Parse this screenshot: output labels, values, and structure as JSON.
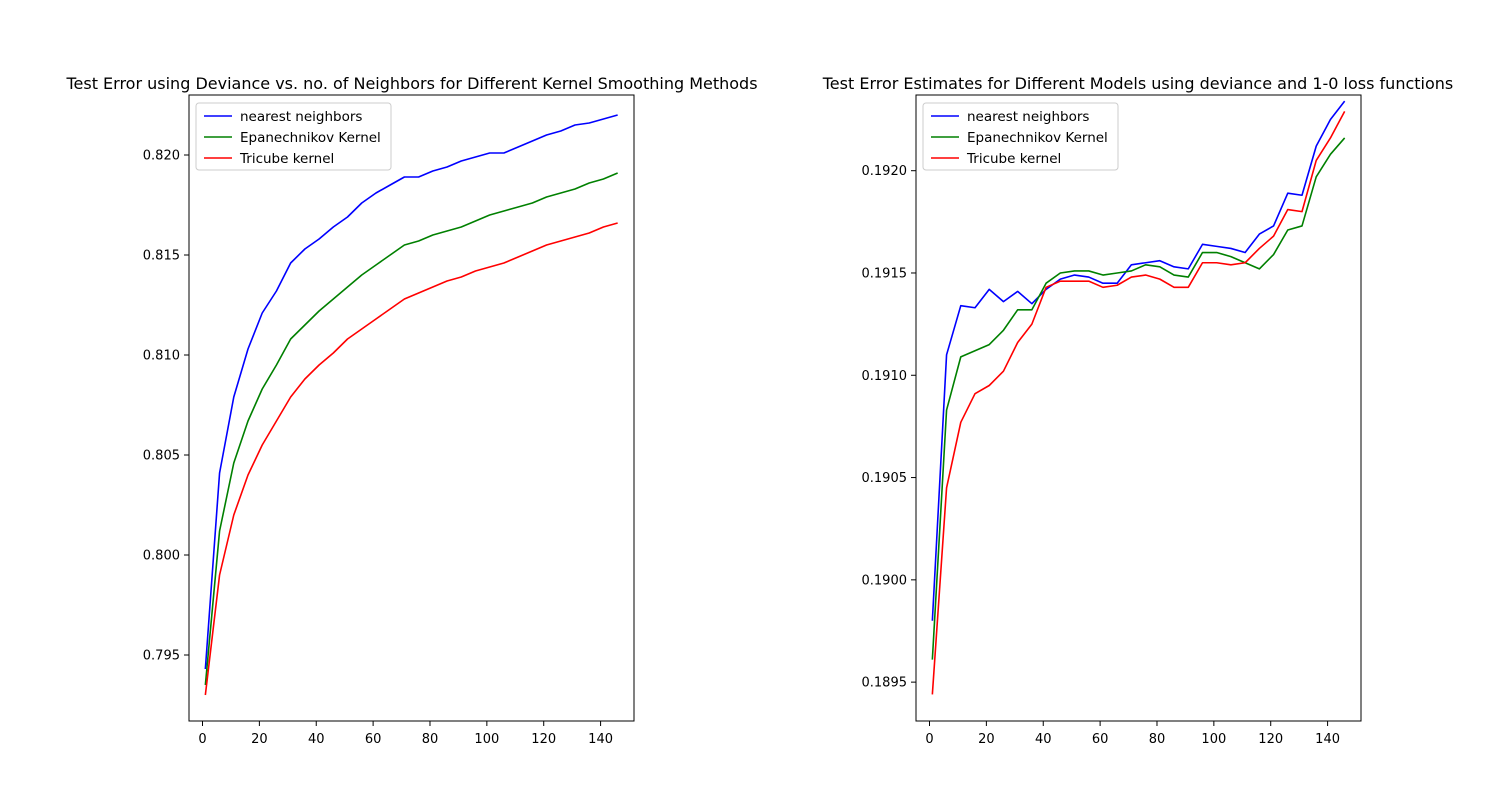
{
  "chart_data": [
    {
      "type": "line",
      "title": "Test Error using Deviance vs. no. of Neighbors for Different Kernel Smoothing Methods",
      "xlabel": "",
      "ylabel": "",
      "xlim": [
        -4.75,
        151.75
      ],
      "ylim": [
        0.7917,
        0.823
      ],
      "xticks": [
        0,
        20,
        40,
        60,
        80,
        100,
        120,
        140
      ],
      "xtick_labels": [
        "0",
        "20",
        "40",
        "60",
        "80",
        "100",
        "120",
        "140"
      ],
      "yticks": [
        0.795,
        0.8,
        0.805,
        0.81,
        0.815,
        0.82
      ],
      "ytick_labels": [
        "0.795",
        "0.800",
        "0.805",
        "0.810",
        "0.815",
        "0.820"
      ],
      "grid": false,
      "legend": "top-left",
      "x": [
        1,
        6,
        11,
        16,
        21,
        26,
        31,
        36,
        41,
        46,
        51,
        56,
        61,
        66,
        71,
        76,
        81,
        86,
        91,
        96,
        101,
        106,
        111,
        116,
        121,
        126,
        131,
        136,
        141,
        146
      ],
      "series": [
        {
          "name": "nearest neighbors",
          "color": "#0000ff",
          "values": [
            0.7943,
            0.8041,
            0.8079,
            0.8103,
            0.8121,
            0.8132,
            0.8146,
            0.8153,
            0.8158,
            0.8164,
            0.8169,
            0.8176,
            0.8181,
            0.8185,
            0.8189,
            0.8189,
            0.8192,
            0.8194,
            0.8197,
            0.8199,
            0.8201,
            0.8201,
            0.8204,
            0.8207,
            0.821,
            0.8212,
            0.8215,
            0.8216,
            0.8218,
            0.822
          ]
        },
        {
          "name": "Epanechnikov Kernel",
          "color": "#008000",
          "values": [
            0.7935,
            0.8012,
            0.8046,
            0.8067,
            0.8083,
            0.8095,
            0.8108,
            0.8115,
            0.8122,
            0.8128,
            0.8134,
            0.814,
            0.8145,
            0.815,
            0.8155,
            0.8157,
            0.816,
            0.8162,
            0.8164,
            0.8167,
            0.817,
            0.8172,
            0.8174,
            0.8176,
            0.8179,
            0.8181,
            0.8183,
            0.8186,
            0.8188,
            0.8191
          ]
        },
        {
          "name": "Tricube kernel",
          "color": "#ff0000",
          "values": [
            0.793,
            0.799,
            0.802,
            0.804,
            0.8055,
            0.8067,
            0.8079,
            0.8088,
            0.8095,
            0.8101,
            0.8108,
            0.8113,
            0.8118,
            0.8123,
            0.8128,
            0.8131,
            0.8134,
            0.8137,
            0.8139,
            0.8142,
            0.8144,
            0.8146,
            0.8149,
            0.8152,
            0.8155,
            0.8157,
            0.8159,
            0.8161,
            0.8164,
            0.8166
          ]
        }
      ]
    },
    {
      "type": "line",
      "title": "Test Error Estimates for Different Models using deviance and 1-0 loss functions",
      "xlabel": "",
      "ylabel": "",
      "xlim": [
        -4.75,
        151.75
      ],
      "ylim": [
        0.18931,
        0.19237
      ],
      "xticks": [
        0,
        20,
        40,
        60,
        80,
        100,
        120,
        140
      ],
      "xtick_labels": [
        "0",
        "20",
        "40",
        "60",
        "80",
        "100",
        "120",
        "140"
      ],
      "yticks": [
        0.1895,
        0.19,
        0.1905,
        0.191,
        0.1915,
        0.192
      ],
      "ytick_labels": [
        "0.1895",
        "0.1900",
        "0.1905",
        "0.1910",
        "0.1915",
        "0.1920"
      ],
      "grid": false,
      "legend": "top-left",
      "x": [
        1,
        6,
        11,
        16,
        21,
        26,
        31,
        36,
        41,
        46,
        51,
        56,
        61,
        66,
        71,
        76,
        81,
        86,
        91,
        96,
        101,
        106,
        111,
        116,
        121,
        126,
        131,
        136,
        141,
        146
      ],
      "series": [
        {
          "name": "nearest neighbors",
          "color": "#0000ff",
          "values": [
            0.1898,
            0.1911,
            0.19134,
            0.19133,
            0.19142,
            0.19136,
            0.19141,
            0.19135,
            0.19142,
            0.19147,
            0.19149,
            0.19148,
            0.19145,
            0.19145,
            0.19154,
            0.19155,
            0.19156,
            0.19153,
            0.19152,
            0.19164,
            0.19163,
            0.19162,
            0.1916,
            0.19169,
            0.19173,
            0.19189,
            0.19188,
            0.19212,
            0.19225,
            0.19234
          ]
        },
        {
          "name": "Epanechnikov Kernel",
          "color": "#008000",
          "values": [
            0.18961,
            0.19083,
            0.19109,
            0.19112,
            0.19115,
            0.19122,
            0.19132,
            0.19132,
            0.19145,
            0.1915,
            0.19151,
            0.19151,
            0.19149,
            0.1915,
            0.19151,
            0.19154,
            0.19153,
            0.19149,
            0.19148,
            0.1916,
            0.1916,
            0.19158,
            0.19155,
            0.19152,
            0.19159,
            0.19171,
            0.19173,
            0.19197,
            0.19208,
            0.19216
          ]
        },
        {
          "name": "Tricube kernel",
          "color": "#ff0000",
          "values": [
            0.18944,
            0.19045,
            0.19077,
            0.19091,
            0.19095,
            0.19102,
            0.19116,
            0.19125,
            0.19143,
            0.19146,
            0.19146,
            0.19146,
            0.19143,
            0.19144,
            0.19148,
            0.19149,
            0.19147,
            0.19143,
            0.19143,
            0.19155,
            0.19155,
            0.19154,
            0.19155,
            0.19162,
            0.19168,
            0.19181,
            0.1918,
            0.19205,
            0.19216,
            0.19229
          ]
        }
      ]
    }
  ]
}
